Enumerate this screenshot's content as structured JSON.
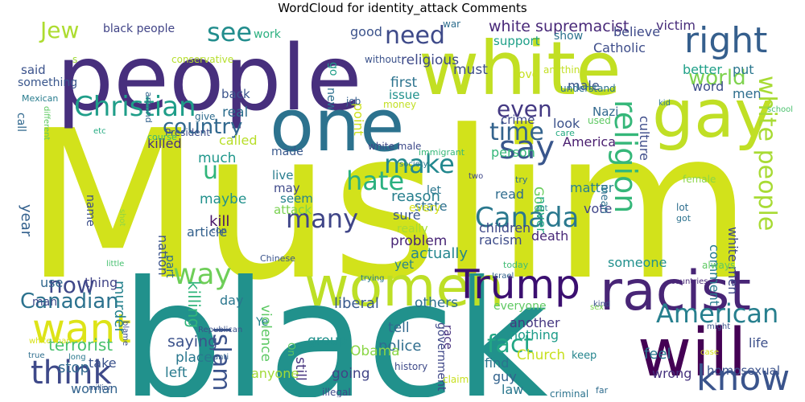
{
  "title": "WordCloud for identity_attack Comments",
  "words": [
    {
      "text": "Muslim",
      "color": "#d2e21b"
    },
    {
      "text": "black",
      "color": "#21918c"
    },
    {
      "text": "people",
      "color": "#472f7d"
    },
    {
      "text": "white",
      "color": "#c2df23"
    },
    {
      "text": "one",
      "color": "#2c728e"
    },
    {
      "text": "women",
      "color": "#bddf26"
    },
    {
      "text": "gay",
      "color": "#c0df25"
    },
    {
      "text": "racist",
      "color": "#482576"
    },
    {
      "text": "will",
      "color": "#440154"
    },
    {
      "text": "Trump",
      "color": "#3b0f70"
    },
    {
      "text": "right",
      "color": "#355f8d"
    },
    {
      "text": "want",
      "color": "#dde318"
    },
    {
      "text": "think",
      "color": "#3e4989"
    },
    {
      "text": "know",
      "color": "#3a548c"
    },
    {
      "text": "Christian",
      "color": "#1f9e89"
    },
    {
      "text": "American",
      "color": "#277f8e"
    },
    {
      "text": "say",
      "color": "#39568c"
    },
    {
      "text": "religion",
      "color": "#35b779"
    },
    {
      "text": "white people",
      "color": "#a8db34"
    },
    {
      "text": "Canada",
      "color": "#2a788e"
    },
    {
      "text": "Canadian",
      "color": "#2c728e"
    },
    {
      "text": "make",
      "color": "#23888e"
    },
    {
      "text": "hate",
      "color": "#2ab07f"
    },
    {
      "text": "need",
      "color": "#3e4a89"
    },
    {
      "text": "country",
      "color": "#31688e"
    },
    {
      "text": "many",
      "color": "#404688"
    },
    {
      "text": "way",
      "color": "#6ece58"
    },
    {
      "text": "now",
      "color": "#3f4889"
    },
    {
      "text": "Islam",
      "color": "#3b528b"
    },
    {
      "text": "fact",
      "color": "#22a785"
    },
    {
      "text": "time",
      "color": "#33638d"
    },
    {
      "text": "even",
      "color": "#443983"
    },
    {
      "text": "see",
      "color": "#228d8d"
    },
    {
      "text": "world",
      "color": "#7fd34e"
    },
    {
      "text": "u",
      "color": "#31b57b"
    },
    {
      "text": "Jew",
      "color": "#addc30"
    },
    {
      "text": "white supremacist",
      "color": "#482878"
    },
    {
      "text": "Nazi",
      "color": "#31688e"
    },
    {
      "text": "terrorist",
      "color": "#48c16e"
    },
    {
      "text": "killing",
      "color": "#31b57b"
    },
    {
      "text": "liberal",
      "color": "#38598c"
    },
    {
      "text": "police",
      "color": "#2e6d8e"
    },
    {
      "text": "Church",
      "color": "#c8e020"
    },
    {
      "text": "government",
      "color": "#3f4788"
    },
    {
      "text": "homosexual",
      "color": "#3b528b"
    },
    {
      "text": "others",
      "color": "#2d708e"
    },
    {
      "text": "Obama",
      "color": "#8bd646"
    },
    {
      "text": "going",
      "color": "#414487"
    },
    {
      "text": "still",
      "color": "#46337e"
    },
    {
      "text": "anyone",
      "color": "#a2da37"
    },
    {
      "text": "wrong",
      "color": "#46327e"
    },
    {
      "text": "murder",
      "color": "#26828e"
    },
    {
      "text": "violence",
      "color": "#5cc863"
    },
    {
      "text": "Catholic",
      "color": "#3d4d8a"
    },
    {
      "text": "believe",
      "color": "#3e4989"
    },
    {
      "text": "victim",
      "color": "#472c7a"
    },
    {
      "text": "good",
      "color": "#3b528b"
    },
    {
      "text": "support",
      "color": "#1fa088"
    },
    {
      "text": "show",
      "color": "#2c738e"
    },
    {
      "text": "work",
      "color": "#2ab07f"
    },
    {
      "text": "black people",
      "color": "#414487"
    },
    {
      "text": "kill",
      "color": "#481467"
    },
    {
      "text": "maybe",
      "color": "#21918c"
    },
    {
      "text": "much",
      "color": "#1f978b"
    },
    {
      "text": "killed",
      "color": "#46307e"
    },
    {
      "text": "called",
      "color": "#b8de29"
    },
    {
      "text": "made",
      "color": "#38588c"
    },
    {
      "text": "live",
      "color": "#287d8e"
    },
    {
      "text": "may",
      "color": "#3e4989"
    },
    {
      "text": "seem",
      "color": "#26828e"
    },
    {
      "text": "attack",
      "color": "#7ad151"
    },
    {
      "text": "reason",
      "color": "#277f8e"
    },
    {
      "text": "sure",
      "color": "#39558c"
    },
    {
      "text": "really",
      "color": "#a5db36"
    },
    {
      "text": "problem",
      "color": "#482576"
    },
    {
      "text": "actually",
      "color": "#24868e"
    },
    {
      "text": "yet",
      "color": "#25858e"
    },
    {
      "text": "children",
      "color": "#3f4889"
    },
    {
      "text": "racism",
      "color": "#3e4c8a"
    },
    {
      "text": "death",
      "color": "#482878"
    },
    {
      "text": "God",
      "color": "#69cd5b"
    },
    {
      "text": "read",
      "color": "#2f6c8e"
    },
    {
      "text": "never",
      "color": "#24aa83"
    },
    {
      "text": "matter",
      "color": "#277f8e"
    },
    {
      "text": "vote",
      "color": "#404588"
    },
    {
      "text": "state",
      "color": "#2d718e"
    },
    {
      "text": "let",
      "color": "#2a778e"
    },
    {
      "text": "person",
      "color": "#35b779"
    },
    {
      "text": "America",
      "color": "#481c6e"
    },
    {
      "text": "look",
      "color": "#3b518b"
    },
    {
      "text": "crime",
      "color": "#3e4989"
    },
    {
      "text": "first",
      "color": "#2c738e"
    },
    {
      "text": "issue",
      "color": "#21918c"
    },
    {
      "text": "real",
      "color": "#2e6e8e"
    },
    {
      "text": "back",
      "color": "#3a548c"
    },
    {
      "text": "male",
      "color": "#3a538b"
    },
    {
      "text": "word",
      "color": "#3d4e8a"
    },
    {
      "text": "men",
      "color": "#2e6e8e"
    },
    {
      "text": "better",
      "color": "#1fa088"
    },
    {
      "text": "put",
      "color": "#2a768e"
    },
    {
      "text": "culture",
      "color": "#3e4c8a"
    },
    {
      "text": "mean",
      "color": "#2e6f8e"
    },
    {
      "text": "someone",
      "color": "#21908d"
    },
    {
      "text": "comment",
      "color": "#287c8e"
    },
    {
      "text": "white men",
      "color": "#3f4889"
    },
    {
      "text": "life",
      "color": "#3c4f8a"
    },
    {
      "text": "keep",
      "color": "#25858e"
    },
    {
      "text": "feel",
      "color": "#2a768e"
    },
    {
      "text": "saying",
      "color": "#3b528b"
    },
    {
      "text": "place",
      "color": "#2a778e"
    },
    {
      "text": "left",
      "color": "#297b8e"
    },
    {
      "text": "tell",
      "color": "#31688e"
    },
    {
      "text": "group",
      "color": "#21918c"
    },
    {
      "text": "another",
      "color": "#453781"
    },
    {
      "text": "nothing",
      "color": "#1e9c89"
    },
    {
      "text": "find",
      "color": "#2b748e"
    },
    {
      "text": "guy",
      "color": "#33638d"
    },
    {
      "text": "law",
      "color": "#2a778e"
    },
    {
      "text": "stop",
      "color": "#31688e"
    },
    {
      "text": "take",
      "color": "#3b528b"
    },
    {
      "text": "woman",
      "color": "#33638d"
    },
    {
      "text": "use",
      "color": "#31688e"
    },
    {
      "text": "thing",
      "color": "#414487"
    },
    {
      "text": "man",
      "color": "#3e4989"
    },
    {
      "text": "day",
      "color": "#2a768e"
    },
    {
      "text": "nation",
      "color": "#3b528b"
    },
    {
      "text": "part",
      "color": "#2e6e8e"
    },
    {
      "text": "article",
      "color": "#34618d"
    },
    {
      "text": "name",
      "color": "#3c4f8a"
    },
    {
      "text": "year",
      "color": "#34618d"
    },
    {
      "text": "something",
      "color": "#39568c"
    },
    {
      "text": "said",
      "color": "#3b528b"
    },
    {
      "text": "call",
      "color": "#31688e"
    },
    {
      "text": "religious",
      "color": "#3e4a89"
    },
    {
      "text": "go",
      "color": "#1f9e89"
    },
    {
      "text": "new",
      "color": "#2d708e"
    },
    {
      "text": "point",
      "color": "#cde11d"
    },
    {
      "text": "must",
      "color": "#3d4d8a"
    },
    {
      "text": "love",
      "color": "#c5e021"
    },
    {
      "text": "race",
      "color": "#46307e"
    },
    {
      "text": "everyone",
      "color": "#5ec962"
    },
    {
      "text": "every",
      "color": "#d8e219"
    },
    {
      "text": "Ye",
      "color": "#25838e"
    },
    {
      "text": "s",
      "color": "#a0da39"
    },
    {
      "text": "conservative",
      "color": "#b5de2b"
    },
    {
      "text": "without",
      "color": "#3b528b"
    },
    {
      "text": "war",
      "color": "#2e6e8e"
    },
    {
      "text": "anything",
      "color": "#c2df23"
    },
    {
      "text": "understand",
      "color": "#2c738e"
    },
    {
      "text": "Mexican",
      "color": "#287c8e"
    },
    {
      "text": "around",
      "color": "#33638d"
    },
    {
      "text": "job",
      "color": "#34618d"
    },
    {
      "text": "money",
      "color": "#c2df23"
    },
    {
      "text": "different",
      "color": "#5ec962"
    },
    {
      "text": "give",
      "color": "#2f6c8e"
    },
    {
      "text": "President",
      "color": "#3d4e8a"
    },
    {
      "text": "course",
      "color": "#35b779"
    },
    {
      "text": "etc",
      "color": "#25ab82"
    },
    {
      "text": "kid",
      "color": "#2a788e"
    },
    {
      "text": "school",
      "color": "#4ac16d"
    },
    {
      "text": "used",
      "color": "#5ec962"
    },
    {
      "text": "care",
      "color": "#25ab82"
    },
    {
      "text": "white male",
      "color": "#3e4a89"
    },
    {
      "text": "immigrant",
      "color": "#37b878"
    },
    {
      "text": "society",
      "color": "#2a788e"
    },
    {
      "text": "two",
      "color": "#3f4889"
    },
    {
      "text": "try",
      "color": "#2d708e"
    },
    {
      "text": "act",
      "color": "#25858e"
    },
    {
      "text": "female",
      "color": "#8bd646"
    },
    {
      "text": "lot",
      "color": "#2e6e8e"
    },
    {
      "text": "got",
      "color": "#2c728e"
    },
    {
      "text": "shot",
      "color": "#90d743"
    },
    {
      "text": "little",
      "color": "#46c06f"
    },
    {
      "text": "cop",
      "color": "#38598c"
    },
    {
      "text": "Chinese",
      "color": "#3a548c"
    },
    {
      "text": "today",
      "color": "#3fbc73"
    },
    {
      "text": "Israel",
      "color": "#33638d"
    },
    {
      "text": "trying",
      "color": "#2a768e"
    },
    {
      "text": "always",
      "color": "#5ec962"
    },
    {
      "text": "countries",
      "color": "#482878"
    },
    {
      "text": "sex",
      "color": "#7ad151"
    },
    {
      "text": "kind",
      "color": "#3b528b"
    },
    {
      "text": "blame",
      "color": "#3d4e8a"
    },
    {
      "text": "Republican",
      "color": "#3b528b"
    },
    {
      "text": "white man",
      "color": "#d8e219"
    },
    {
      "text": "true",
      "color": "#2e6e8e"
    },
    {
      "text": "long",
      "color": "#2a788e"
    },
    {
      "text": "anti",
      "color": "#33638d"
    },
    {
      "text": "million",
      "color": "#39568c"
    },
    {
      "text": "history",
      "color": "#3e4a89"
    },
    {
      "text": "illegal",
      "color": "#3e4989"
    },
    {
      "text": "claim",
      "color": "#c8e020"
    },
    {
      "text": "criminal",
      "color": "#2c738e"
    },
    {
      "text": "case",
      "color": "#d5e21a"
    },
    {
      "text": "far",
      "color": "#2f6c8e"
    },
    {
      "text": "might",
      "color": "#3b528b"
    },
    {
      "text": "On",
      "color": "#5ec962"
    },
    {
      "text": "come",
      "color": "#a2da37"
    }
  ]
}
